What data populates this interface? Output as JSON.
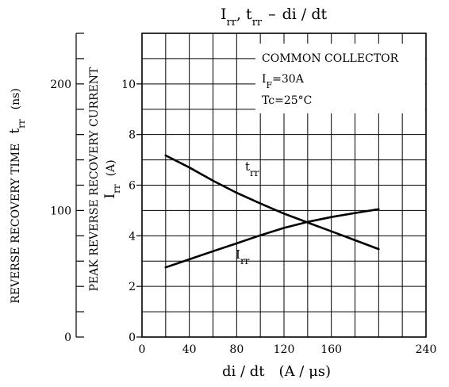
{
  "chart_data": {
    "type": "line",
    "title": "I",
    "title_parts": {
      "irr_main": "I",
      "irr_sub": "rr",
      "sep": ", ",
      "trr_main": "t",
      "trr_sub": "rr",
      "dash": "–",
      "x": "di / dt"
    },
    "x_label": {
      "main": "di / dt",
      "unit": "(A / μs)"
    },
    "x_ticks": [
      "0",
      "40",
      "80",
      "120",
      "160",
      "240"
    ],
    "x_range": [
      0,
      240
    ],
    "y_left_current": {
      "label": "PEAK REVERSE RECOVERY CURRENT",
      "symbol_main": "I",
      "symbol_sub": "rr",
      "unit": "(A)",
      "ticks": [
        "0",
        "2",
        "4",
        "6",
        "8",
        "10"
      ],
      "range": [
        0,
        12
      ]
    },
    "y_left_time": {
      "label": "REVERSE RECOVERY TIME",
      "symbol_main": "t",
      "symbol_sub": "rr",
      "unit": "(ns)",
      "ticks": [
        "0",
        "100",
        "200"
      ],
      "range": [
        0,
        240
      ]
    },
    "annotations": {
      "line1": "COMMON COLLECTOR",
      "line2_main": "I",
      "line2_sub": "F",
      "line2_val": "=30A",
      "line3": "Tc=25°C"
    },
    "grid": true,
    "series": [
      {
        "name": "t",
        "name_sub": "rr",
        "axis": "time_ns",
        "x": [
          20,
          40,
          60,
          80,
          100,
          120,
          140,
          160,
          180,
          200
        ],
        "y": [
          143.5,
          134,
          123.5,
          114,
          105.5,
          97.5,
          90.5,
          83.5,
          76.5,
          69.5
        ]
      },
      {
        "name": "I",
        "name_sub": "rr",
        "axis": "current_A",
        "x": [
          20,
          40,
          60,
          80,
          100,
          120,
          140,
          160,
          180,
          200
        ],
        "y": [
          2.75,
          3.07,
          3.39,
          3.7,
          4.02,
          4.31,
          4.55,
          4.74,
          4.9,
          5.05
        ]
      }
    ]
  }
}
